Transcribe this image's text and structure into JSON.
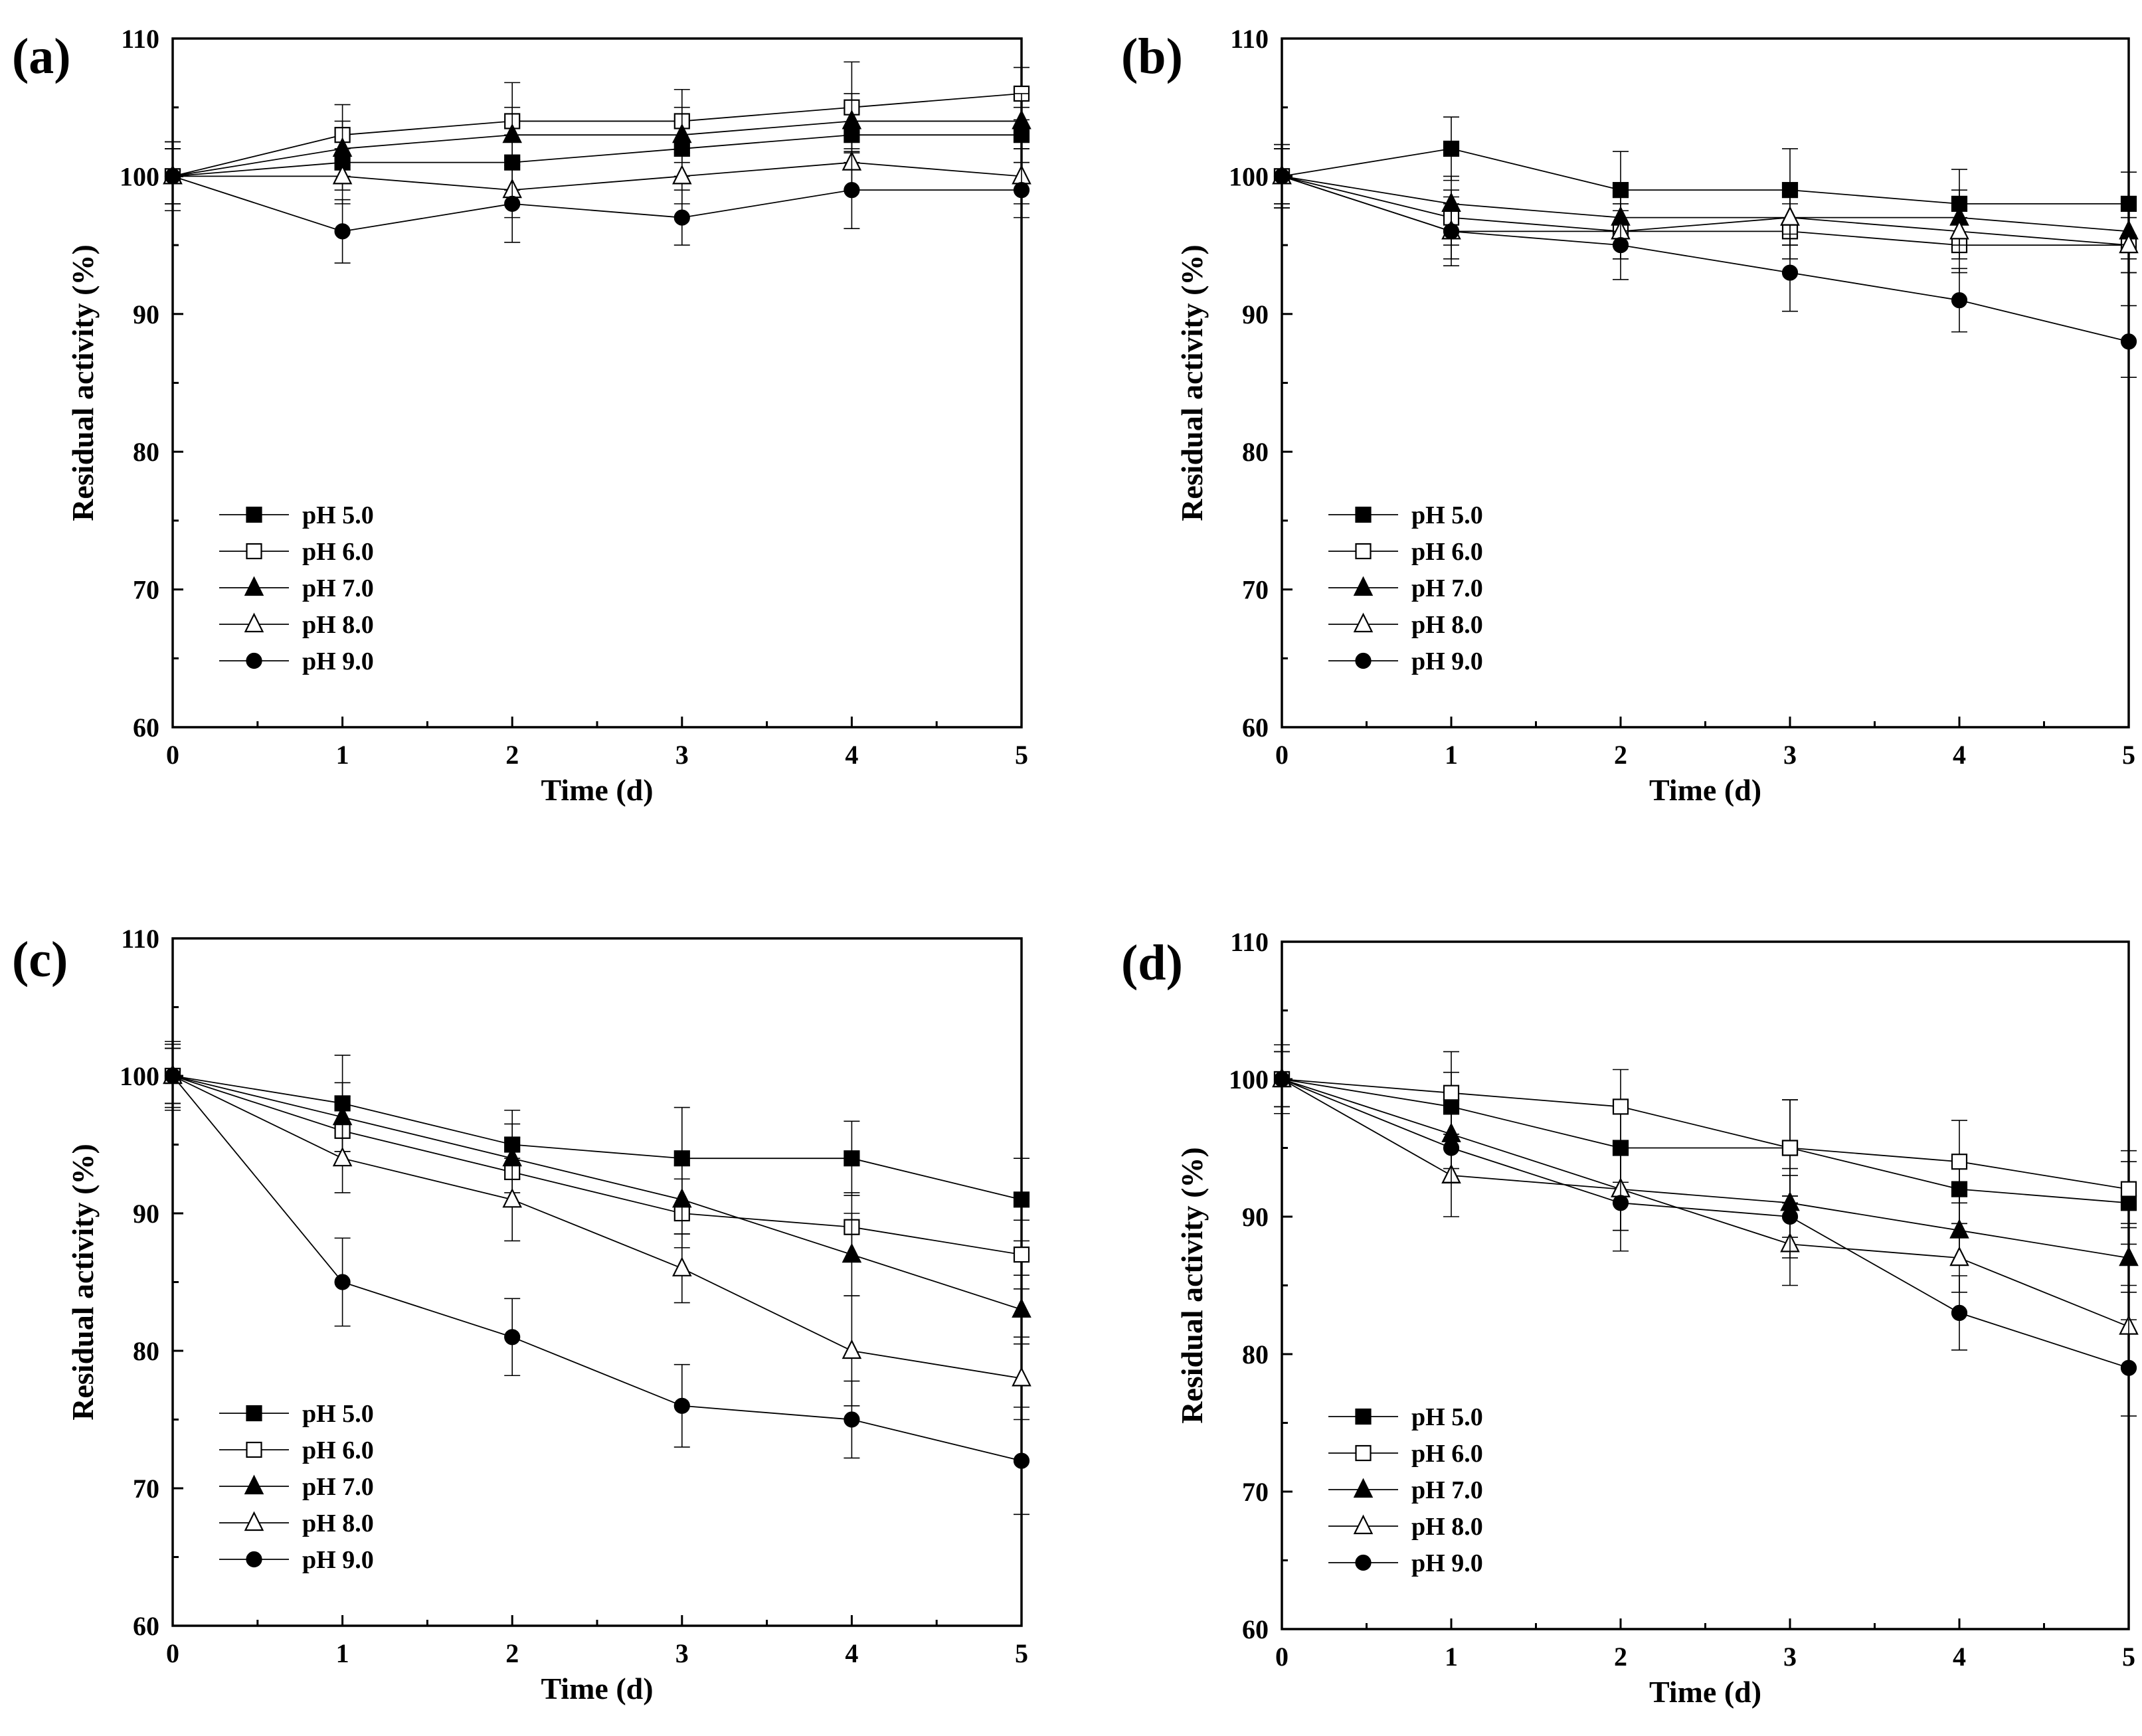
{
  "chart_data": [
    {
      "type": "line",
      "panel_label": "(a)",
      "xlabel": "Time (d)",
      "ylabel": "Residual activity (%)",
      "x": [
        0,
        1,
        2,
        3,
        4,
        5
      ],
      "xlim": [
        0,
        5
      ],
      "ylim": [
        60,
        110
      ],
      "xticks": [
        "0",
        "1",
        "2",
        "3",
        "4",
        "5"
      ],
      "yticks": [
        "60",
        "70",
        "80",
        "90",
        "100",
        "110"
      ],
      "legend_position": "lower-left",
      "series": [
        {
          "name": "pH 5.0",
          "marker": "square-filled",
          "values": [
            100,
            101,
            101,
            102,
            103,
            103
          ],
          "errors": [
            2,
            2,
            2,
            2,
            2,
            2
          ]
        },
        {
          "name": "pH 6.0",
          "marker": "square-open",
          "values": [
            100,
            103,
            104,
            104,
            105,
            106
          ],
          "errors": [
            2.5,
            2.2,
            2.8,
            2.3,
            3.3,
            1.9
          ]
        },
        {
          "name": "pH 7.0",
          "marker": "triangle-filled",
          "values": [
            100,
            102,
            103,
            103,
            104,
            104
          ],
          "errors": [
            2,
            2,
            2,
            2,
            2,
            2
          ]
        },
        {
          "name": "pH 8.0",
          "marker": "triangle-open",
          "values": [
            100,
            100,
            99,
            100,
            101,
            100
          ],
          "errors": [
            2,
            2,
            2,
            2,
            2,
            2
          ]
        },
        {
          "name": "pH 9.0",
          "marker": "circle-filled",
          "values": [
            100,
            96,
            98,
            97,
            99,
            99
          ],
          "errors": [
            2.5,
            2.3,
            2.8,
            2,
            2.8,
            2
          ]
        }
      ]
    },
    {
      "type": "line",
      "panel_label": "(b)",
      "xlabel": "Time (d)",
      "ylabel": "Residual activity (%)",
      "x": [
        0,
        1,
        2,
        3,
        4,
        5
      ],
      "xlim": [
        0,
        5
      ],
      "ylim": [
        60,
        110
      ],
      "xticks": [
        "0",
        "1",
        "2",
        "3",
        "4",
        "5"
      ],
      "yticks": [
        "60",
        "70",
        "80",
        "90",
        "100",
        "110"
      ],
      "legend_position": "lower-left",
      "series": [
        {
          "name": "pH 5.0",
          "marker": "square-filled",
          "values": [
            100,
            102,
            99,
            99,
            98,
            98
          ],
          "errors": [
            2.3,
            2.3,
            2.8,
            3,
            2.5,
            2.3
          ]
        },
        {
          "name": "pH 6.0",
          "marker": "square-open",
          "values": [
            100,
            97,
            96,
            96,
            95,
            95
          ],
          "errors": [
            2,
            2,
            2,
            2,
            2,
            2
          ]
        },
        {
          "name": "pH 7.0",
          "marker": "triangle-filled",
          "values": [
            100,
            98,
            97,
            97,
            97,
            96
          ],
          "errors": [
            2,
            2,
            2,
            2,
            2,
            2
          ]
        },
        {
          "name": "pH 8.0",
          "marker": "triangle-open",
          "values": [
            100,
            96,
            96,
            97,
            96,
            95
          ],
          "errors": [
            2,
            2,
            2,
            2,
            2,
            2
          ]
        },
        {
          "name": "pH 9.0",
          "marker": "circle-filled",
          "values": [
            100,
            96,
            95,
            93,
            91,
            88
          ],
          "errors": [
            2.3,
            2.5,
            2.5,
            2.8,
            2.3,
            2.6
          ]
        }
      ]
    },
    {
      "type": "line",
      "panel_label": "(c)",
      "xlabel": "Time (d)",
      "ylabel": "Residual activity (%)",
      "x": [
        0,
        1,
        2,
        3,
        4,
        5
      ],
      "xlim": [
        0,
        5
      ],
      "ylim": [
        60,
        110
      ],
      "xticks": [
        "0",
        "1",
        "2",
        "3",
        "4",
        "5"
      ],
      "yticks": [
        "60",
        "70",
        "80",
        "90",
        "100",
        "110"
      ],
      "legend_position": "lower-left",
      "series": [
        {
          "name": "pH 5.0",
          "marker": "square-filled",
          "values": [
            100,
            98,
            95,
            94,
            94,
            91
          ],
          "errors": [
            2.3,
            3.5,
            2.5,
            3.7,
            2.7,
            3
          ]
        },
        {
          "name": "pH 6.0",
          "marker": "square-open",
          "values": [
            100,
            96,
            93,
            90,
            89,
            87
          ],
          "errors": [
            2,
            2.5,
            2.5,
            2.5,
            2.5,
            2.5
          ]
        },
        {
          "name": "pH 7.0",
          "marker": "triangle-filled",
          "values": [
            100,
            97,
            94,
            91,
            87,
            83
          ],
          "errors": [
            2,
            2.5,
            2.5,
            2.5,
            3,
            2.5
          ]
        },
        {
          "name": "pH 8.0",
          "marker": "triangle-open",
          "values": [
            100,
            94,
            91,
            86,
            80,
            78
          ],
          "errors": [
            2,
            2.5,
            3,
            2.5,
            4,
            3
          ]
        },
        {
          "name": "pH 9.0",
          "marker": "circle-filled",
          "values": [
            100,
            85,
            81,
            76,
            75,
            72
          ],
          "errors": [
            2.5,
            3.2,
            2.8,
            3,
            2.8,
            3.9
          ]
        }
      ]
    },
    {
      "type": "line",
      "panel_label": "(d)",
      "xlabel": "Time (d)",
      "ylabel": "Residual activity (%)",
      "x": [
        0,
        1,
        2,
        3,
        4,
        5
      ],
      "xlim": [
        0,
        5
      ],
      "ylim": [
        60,
        110
      ],
      "xticks": [
        "0",
        "1",
        "2",
        "3",
        "4",
        "5"
      ],
      "yticks": [
        "60",
        "70",
        "80",
        "90",
        "100",
        "110"
      ],
      "legend_position": "lower-left",
      "series": [
        {
          "name": "pH 5.0",
          "marker": "square-filled",
          "values": [
            100,
            98,
            95,
            95,
            92,
            91
          ],
          "errors": [
            2.5,
            2.5,
            2.5,
            3.5,
            2.5,
            3
          ]
        },
        {
          "name": "pH 6.0",
          "marker": "square-open",
          "values": [
            100,
            99,
            98,
            95,
            94,
            92
          ],
          "errors": [
            2.5,
            3,
            2.7,
            3.5,
            3,
            2.8
          ]
        },
        {
          "name": "pH 7.0",
          "marker": "triangle-filled",
          "values": [
            100,
            96,
            92,
            91,
            89,
            87
          ],
          "errors": [
            2,
            2.5,
            3,
            2.5,
            2.5,
            2.5
          ]
        },
        {
          "name": "pH 8.0",
          "marker": "triangle-open",
          "values": [
            100,
            93,
            92,
            88,
            87,
            82
          ],
          "errors": [
            2,
            3,
            3,
            3,
            2.5,
            3
          ]
        },
        {
          "name": "pH 9.0",
          "marker": "circle-filled",
          "values": [
            100,
            95,
            91,
            90,
            83,
            79
          ],
          "errors": [
            2.5,
            2.5,
            3.5,
            3,
            2.7,
            3.5
          ]
        }
      ]
    }
  ]
}
